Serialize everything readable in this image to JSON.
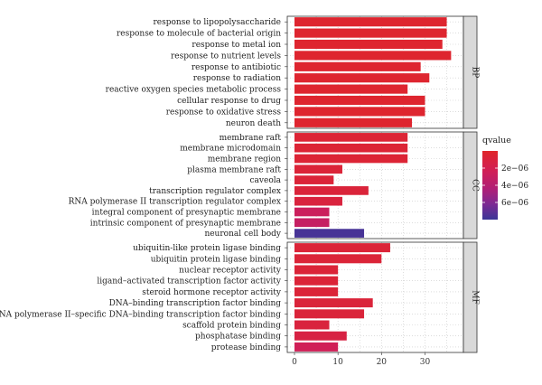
{
  "chart_data": {
    "type": "bar",
    "orientation": "horizontal",
    "grid": true,
    "legend_position": "right",
    "xlim": [
      0,
      38
    ],
    "xticks": [
      0,
      10,
      20,
      30
    ],
    "color_scale": {
      "title": "qvalue",
      "ticks": [
        2e-06,
        4e-06,
        6e-06
      ],
      "tick_labels": [
        "2e−06",
        "4e−06",
        "6e−06"
      ],
      "domain": [
        0,
        8e-06
      ],
      "colors": [
        "#e0262a",
        "#d01f57",
        "#b01f76",
        "#7b2a94",
        "#3a3596"
      ]
    },
    "facets": [
      {
        "name": "BP",
        "categories": [
          "response to lipopolysaccharide",
          "response to molecule of bacterial origin",
          "response to metal ion",
          "response to nutrient levels",
          "response to antibiotic",
          "response to radiation",
          "reactive oxygen species metabolic process",
          "cellular response to drug",
          "response to oxidative stress",
          "neuron death"
        ],
        "values": [
          35,
          35,
          34,
          36,
          29,
          31,
          26,
          30,
          30,
          27
        ],
        "qvalues": [
          2e-07,
          2e-07,
          2e-07,
          2e-07,
          2e-07,
          2e-07,
          2e-07,
          2e-07,
          2e-07,
          2e-07
        ]
      },
      {
        "name": "CC",
        "categories": [
          "membrane raft",
          "membrane microdomain",
          "membrane region",
          "plasma membrane raft",
          "caveola",
          "transcription regulator complex",
          "RNA polymerase II transcription regulator complex",
          "integral component of presynaptic membrane",
          "intrinsic component of presynaptic membrane",
          "neuronal cell body"
        ],
        "values": [
          26,
          26,
          26,
          11,
          9,
          17,
          11,
          8,
          8,
          16
        ],
        "qvalues": [
          5e-07,
          5e-07,
          5e-07,
          6e-07,
          6e-07,
          7e-07,
          9e-07,
          2.3e-06,
          2.7e-06,
          7.6e-06
        ]
      },
      {
        "name": "MF",
        "categories": [
          "ubiquitin-like protein ligase binding",
          "ubiquitin protein ligase binding",
          "nuclear receptor activity",
          "ligand–activated transcription factor activity",
          "steroid hormone receptor activity",
          "DNA–binding transcription factor binding",
          "RNA polymerase II–specific DNA–binding transcription factor binding",
          "scaffold protein binding",
          "phosphatase binding",
          "protease binding"
        ],
        "values": [
          22,
          20,
          10,
          10,
          10,
          18,
          16,
          8,
          12,
          10
        ],
        "qvalues": [
          6e-07,
          6e-07,
          6e-07,
          6e-07,
          6e-07,
          7e-07,
          7e-07,
          9e-07,
          1.1e-06,
          2e-06
        ]
      }
    ]
  }
}
